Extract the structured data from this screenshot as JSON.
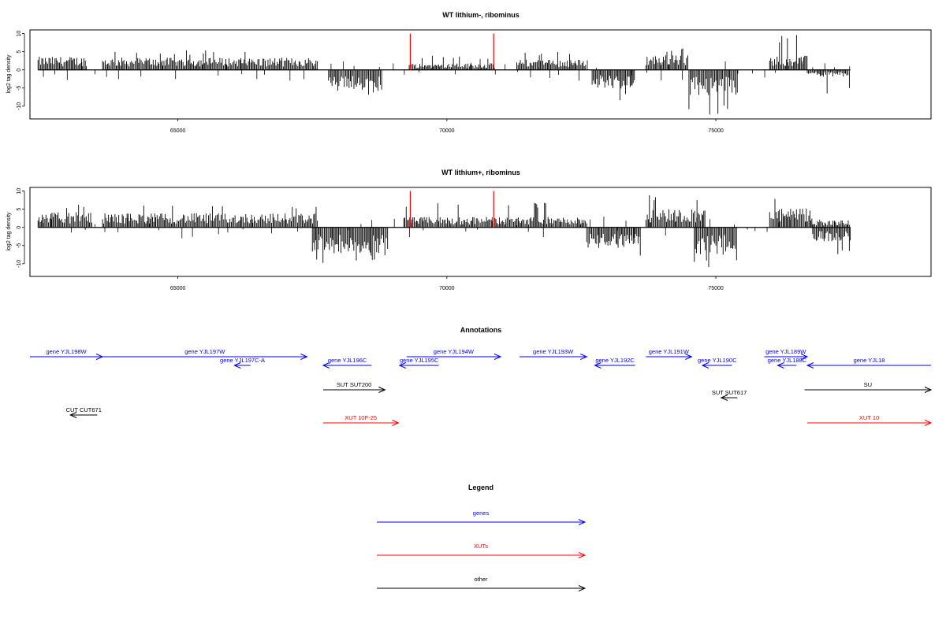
{
  "chart_data": [
    {
      "type": "bar",
      "title": "WT lithium-, ribominus",
      "ylabel": "log2 tag density",
      "xlim": [
        62250,
        79000
      ],
      "ylim": [
        -13.5,
        11
      ],
      "xticks": [
        65000,
        70000,
        75000
      ],
      "yticks": [
        10,
        5,
        0,
        -5,
        -10
      ],
      "series": [
        {
          "name": "plus strand",
          "segments": [
            {
              "x_start": 62400,
              "x_end": 63300,
              "mean": 2.8,
              "max": 5.5
            },
            {
              "x_start": 63600,
              "x_end": 67600,
              "mean": 2.6,
              "max": 5.5
            },
            {
              "x_start": 69300,
              "x_end": 70900,
              "mean": 1.4,
              "max": 4.0
            },
            {
              "x_start": 71300,
              "x_end": 72600,
              "mean": 2.2,
              "max": 5.0
            },
            {
              "x_start": 73700,
              "x_end": 74500,
              "mean": 3.2,
              "max": 6.5
            },
            {
              "x_start": 76000,
              "x_end": 76700,
              "mean": 3.0,
              "max": 10.0
            }
          ]
        },
        {
          "name": "minus strand",
          "segments": [
            {
              "x_start": 67800,
              "x_end": 68800,
              "mean": -4.5,
              "min": -7.5
            },
            {
              "x_start": 72700,
              "x_end": 73500,
              "mean": -4.0,
              "min": -8.5
            },
            {
              "x_start": 74500,
              "x_end": 75400,
              "mean": -5.5,
              "min": -12.5
            },
            {
              "x_start": 76700,
              "x_end": 77500,
              "mean": -1.5,
              "min": -6.5
            }
          ]
        },
        {
          "name": "highlight",
          "x": [
            69320,
            70870
          ],
          "values": [
            10,
            10
          ]
        }
      ]
    },
    {
      "type": "bar",
      "title": "WT lithium+, ribominus",
      "ylabel": "log2 tag density",
      "xlim": [
        62250,
        79000
      ],
      "ylim": [
        -13.5,
        11
      ],
      "xticks": [
        65000,
        70000,
        75000
      ],
      "yticks": [
        10,
        5,
        0,
        -5,
        -10
      ],
      "series": [
        {
          "name": "plus strand",
          "segments": [
            {
              "x_start": 62400,
              "x_end": 63400,
              "mean": 3.2,
              "max": 7.0
            },
            {
              "x_start": 63600,
              "x_end": 67600,
              "mean": 3.0,
              "max": 6.0
            },
            {
              "x_start": 69200,
              "x_end": 72600,
              "mean": 2.2,
              "max": 7.0
            },
            {
              "x_start": 73700,
              "x_end": 74800,
              "mean": 4.0,
              "max": 9.0
            },
            {
              "x_start": 76000,
              "x_end": 76800,
              "mean": 4.0,
              "max": 9.0
            },
            {
              "x_start": 76800,
              "x_end": 77500,
              "mean": 1.5,
              "max": 3.0
            }
          ]
        },
        {
          "name": "minus strand",
          "segments": [
            {
              "x_start": 67500,
              "x_end": 68900,
              "mean": -5.5,
              "min": -10.0
            },
            {
              "x_start": 72600,
              "x_end": 73600,
              "mean": -4.5,
              "min": -9.5
            },
            {
              "x_start": 74600,
              "x_end": 75400,
              "mean": -6.0,
              "min": -12.0
            },
            {
              "x_start": 76800,
              "x_end": 77500,
              "mean": -3.0,
              "min": -8.0
            }
          ]
        },
        {
          "name": "highlight",
          "x": [
            69320,
            70870
          ],
          "values": [
            10,
            10
          ]
        }
      ]
    }
  ],
  "annotations": {
    "title": "Annotations",
    "colors": {
      "gene": "#0000ff",
      "xut": "#ff0000",
      "other": "#000000"
    },
    "features": [
      {
        "label": "gene YJL198W",
        "start": 62250,
        "end": 63600,
        "dir": "right",
        "cls": "gene",
        "row": 0
      },
      {
        "label": "gene YJL197W",
        "start": 63600,
        "end": 67400,
        "dir": "right",
        "cls": "gene",
        "row": 0
      },
      {
        "label": "gene YJL197C-A",
        "start": 66050,
        "end": 66350,
        "dir": "left",
        "cls": "gene",
        "row": 1
      },
      {
        "label": "gene YJL196C",
        "start": 67700,
        "end": 68600,
        "dir": "left",
        "cls": "gene",
        "row": 1
      },
      {
        "label": "gene YJL195C",
        "start": 69120,
        "end": 69850,
        "dir": "left",
        "cls": "gene",
        "row": 1
      },
      {
        "label": "gene YJL194W",
        "start": 69250,
        "end": 71000,
        "dir": "right",
        "cls": "gene",
        "row": 0
      },
      {
        "label": "gene YJL193W",
        "start": 71350,
        "end": 72600,
        "dir": "right",
        "cls": "gene",
        "row": 0
      },
      {
        "label": "gene YJL192C",
        "start": 72750,
        "end": 73500,
        "dir": "left",
        "cls": "gene",
        "row": 1
      },
      {
        "label": "gene YJL191W",
        "start": 73700,
        "end": 74550,
        "dir": "right",
        "cls": "gene",
        "row": 0
      },
      {
        "label": "gene YJL190C",
        "start": 74750,
        "end": 75300,
        "dir": "left",
        "cls": "gene",
        "row": 1
      },
      {
        "label": "gene YJL189W",
        "start": 75900,
        "end": 76700,
        "dir": "right",
        "cls": "gene",
        "row": 0
      },
      {
        "label": "gene YJL188C",
        "start": 76150,
        "end": 76500,
        "dir": "left",
        "cls": "gene",
        "row": 1
      },
      {
        "label": "gene YJL18",
        "start": 76700,
        "end": 79000,
        "dir": "left",
        "cls": "gene",
        "row": 1
      },
      {
        "label": "SUT SUT200",
        "start": 67700,
        "end": 68850,
        "dir": "right",
        "cls": "other",
        "row": 2
      },
      {
        "label": "SUT SUT617",
        "start": 75100,
        "end": 75400,
        "dir": "left",
        "cls": "other",
        "row": 3
      },
      {
        "label": "SU",
        "start": 76650,
        "end": 79000,
        "dir": "right",
        "cls": "other",
        "row": 2
      },
      {
        "label": "CUT CUT671",
        "start": 63000,
        "end": 63500,
        "dir": "left",
        "cls": "other",
        "row": 4
      },
      {
        "label": "XUT 10F-25",
        "start": 67700,
        "end": 69100,
        "dir": "right",
        "cls": "xut",
        "row": 5
      },
      {
        "label": "XUT 10",
        "start": 76700,
        "end": 79000,
        "dir": "right",
        "cls": "xut",
        "row": 5
      }
    ]
  },
  "legend": {
    "title": "Legend",
    "items": [
      {
        "label": "genes",
        "color": "#0000ff"
      },
      {
        "label": "XUTs",
        "color": "#ff0000"
      },
      {
        "label": "other",
        "color": "#000000"
      }
    ]
  }
}
